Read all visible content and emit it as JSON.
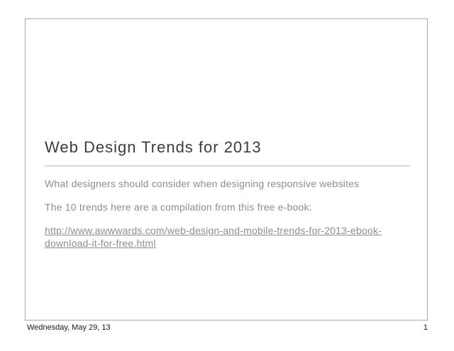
{
  "slide": {
    "title": "Web Design Trends for 2013",
    "paragraphs": [
      "What designers should consider when designing responsive websites",
      "The 10 trends here are a compilation from this free e-book:"
    ],
    "link": "http://www.awwwards.com/web-design-and-mobile-trends-for-2013-ebook-download-it-for-free.html"
  },
  "footer": {
    "date": "Wednesday, May 29, 13",
    "page_number": "1"
  },
  "colors": {
    "background": "#ffffff",
    "slide_border": "#a9a9a9",
    "title": "#3c3c3c",
    "body": "#8e8e8e",
    "divider": "#d8d8d8",
    "footer_text": "#1a1a1a"
  }
}
